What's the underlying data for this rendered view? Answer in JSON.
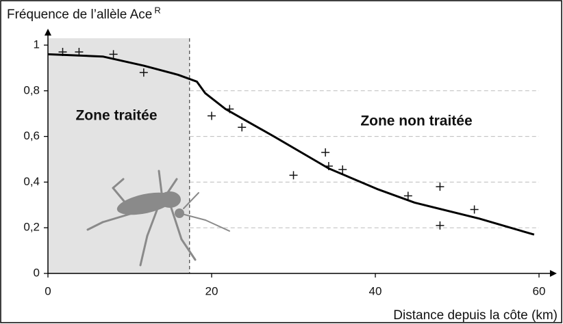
{
  "chart_data": {
    "type": "scatter",
    "y_label": "Fréquence de l’allèle Ace",
    "y_label_sup": "R",
    "x_label": "Distance depuis la côte (km)",
    "xlim": [
      0,
      61
    ],
    "ylim": [
      0,
      1.03
    ],
    "xticks": [
      0,
      20,
      40,
      60
    ],
    "yticks": [
      0,
      {
        "value": 0.2,
        "label": "0,2"
      },
      {
        "value": 0.4,
        "label": "0,4"
      },
      {
        "value": 0.6,
        "label": "0,6"
      },
      {
        "value": 0.8,
        "label": "0,8"
      },
      1
    ],
    "grid": true,
    "zones": [
      {
        "label": "Zone traitée",
        "x": [
          0,
          17.3
        ],
        "color": "#e3e3e3"
      },
      {
        "label": "Zone non traitée"
      }
    ],
    "series": [
      {
        "type": "scatter",
        "color": "#111111",
        "x": [
          1.8,
          3.8,
          8.0,
          11.7,
          20.0,
          22.2,
          23.7,
          30.0,
          33.9,
          34.3,
          36.0,
          44.0,
          47.9,
          47.9,
          52.1
        ],
        "values": [
          0.97,
          0.97,
          0.96,
          0.88,
          0.69,
          0.72,
          0.64,
          0.43,
          0.53,
          0.47,
          0.455,
          0.34,
          0.38,
          0.21,
          0.28
        ]
      },
      {
        "type": "line",
        "color": "#000000",
        "x": [
          0,
          6.7,
          11.7,
          15.9,
          18.2,
          19.2,
          21.7,
          27.6,
          34.3,
          40.2,
          44.8,
          52.7,
          59.4
        ],
        "values": [
          0.96,
          0.95,
          0.91,
          0.87,
          0.84,
          0.79,
          0.72,
          0.6,
          0.46,
          0.37,
          0.31,
          0.24,
          0.17
        ]
      }
    ]
  }
}
